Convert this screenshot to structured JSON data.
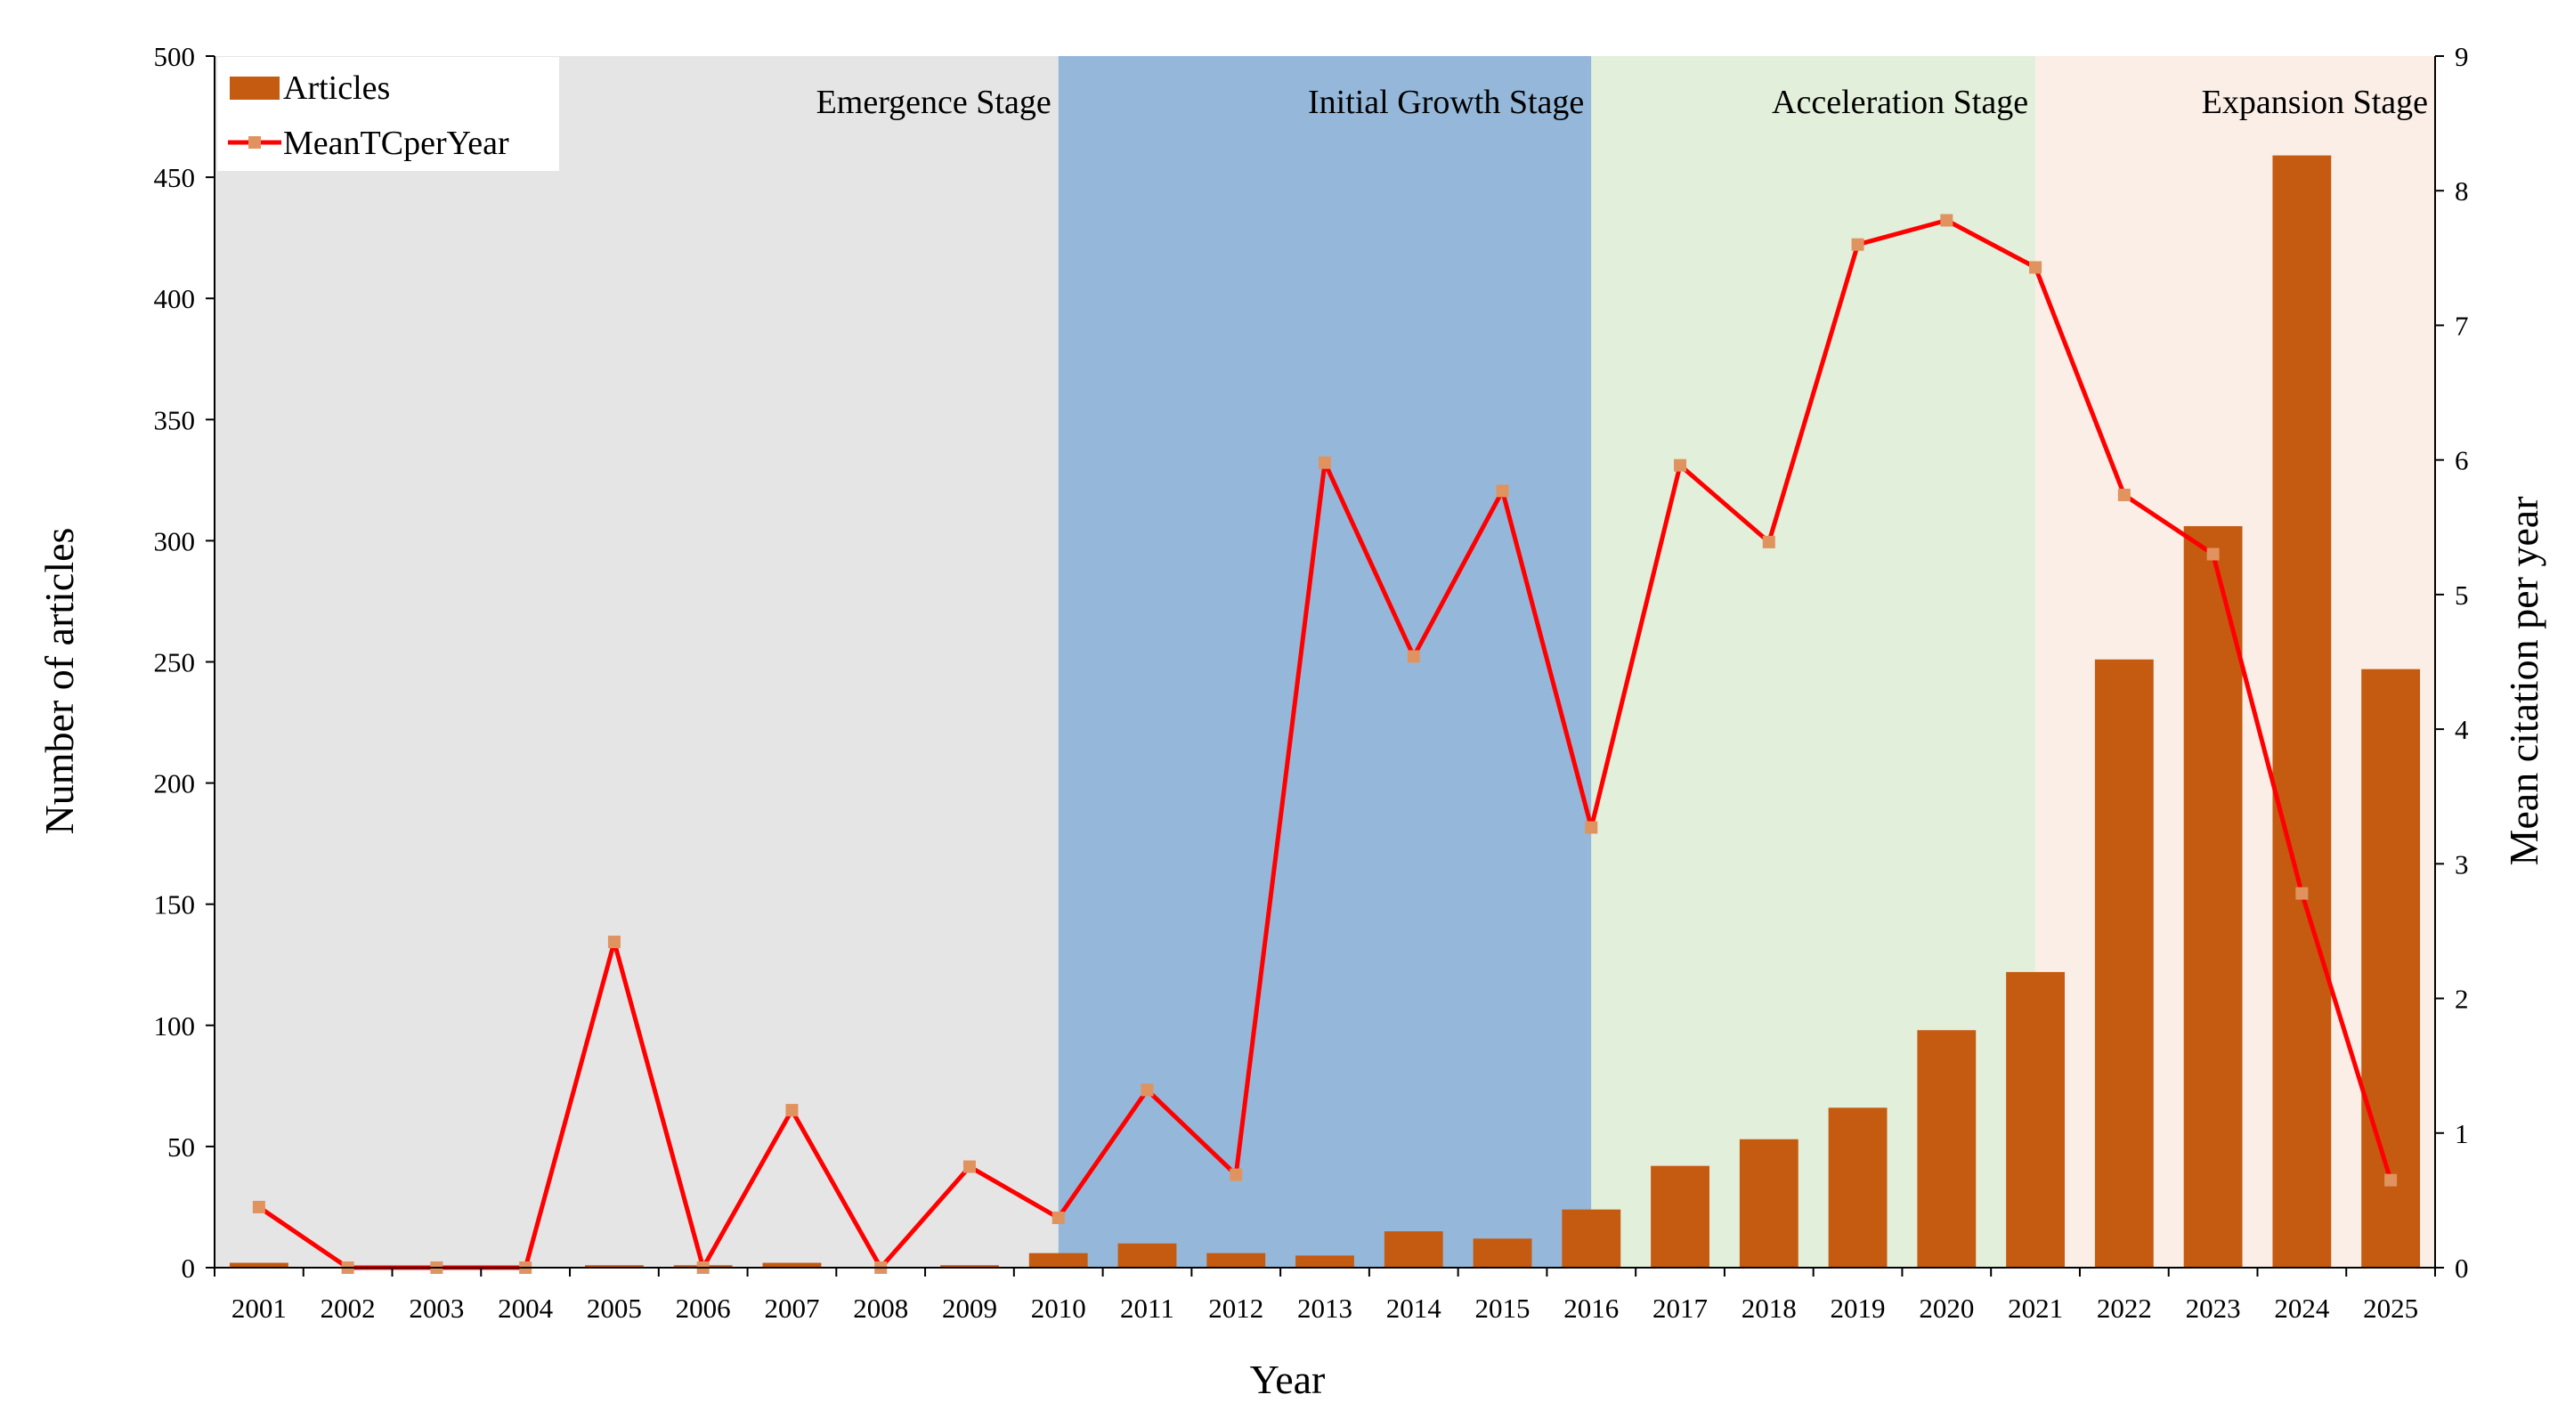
{
  "chart_data": {
    "type": "bar",
    "title": "",
    "xlabel": "Year",
    "ylabel": "Number of articles",
    "y2label": "Mean citation per year",
    "ylim": [
      0,
      500
    ],
    "y2lim": [
      0,
      9
    ],
    "yticks": [
      0,
      50,
      100,
      150,
      200,
      250,
      300,
      350,
      400,
      450,
      500
    ],
    "y2ticks": [
      0,
      1,
      2,
      3,
      4,
      5,
      6,
      7,
      8,
      9
    ],
    "grid": false,
    "legend_position": "top-left",
    "categories": [
      "2001",
      "2002",
      "2003",
      "2004",
      "2005",
      "2006",
      "2007",
      "2008",
      "2009",
      "2010",
      "2011",
      "2012",
      "2013",
      "2014",
      "2015",
      "2016",
      "2017",
      "2018",
      "2019",
      "2020",
      "2021",
      "2022",
      "2023",
      "2024",
      "2025"
    ],
    "series": [
      {
        "name": "Articles",
        "type": "bar",
        "axis": "left",
        "color": "#c55a11",
        "values": [
          2,
          0,
          0,
          0,
          1,
          1,
          2,
          0,
          1,
          6,
          10,
          6,
          5,
          15,
          12,
          24,
          42,
          53,
          66,
          98,
          122,
          251,
          306,
          459,
          247
        ]
      },
      {
        "name": "MeanTCperYear",
        "type": "line",
        "axis": "right",
        "color": "#ff0000",
        "marker_color": "#e0935e",
        "values": [
          0.45,
          0.0,
          0.0,
          0.0,
          2.42,
          0.0,
          1.17,
          0.0,
          0.75,
          0.37,
          1.32,
          0.69,
          5.98,
          4.54,
          5.77,
          3.27,
          5.96,
          5.39,
          7.6,
          7.78,
          7.43,
          5.74,
          5.3,
          2.78,
          0.65
        ]
      }
    ],
    "stages": [
      {
        "label": "Emergence Stage",
        "from": "2001",
        "to": "2010",
        "color": "#e5e5e5"
      },
      {
        "label": "Initial Growth Stage",
        "from": "2010",
        "to": "2016",
        "color": "#95b8da"
      },
      {
        "label": "Acceleration Stage",
        "from": "2016",
        "to": "2021",
        "color": "#e2efda"
      },
      {
        "label": "Expansion Stage",
        "from": "2021",
        "to": "2025",
        "color": "#fbeee6"
      }
    ]
  }
}
